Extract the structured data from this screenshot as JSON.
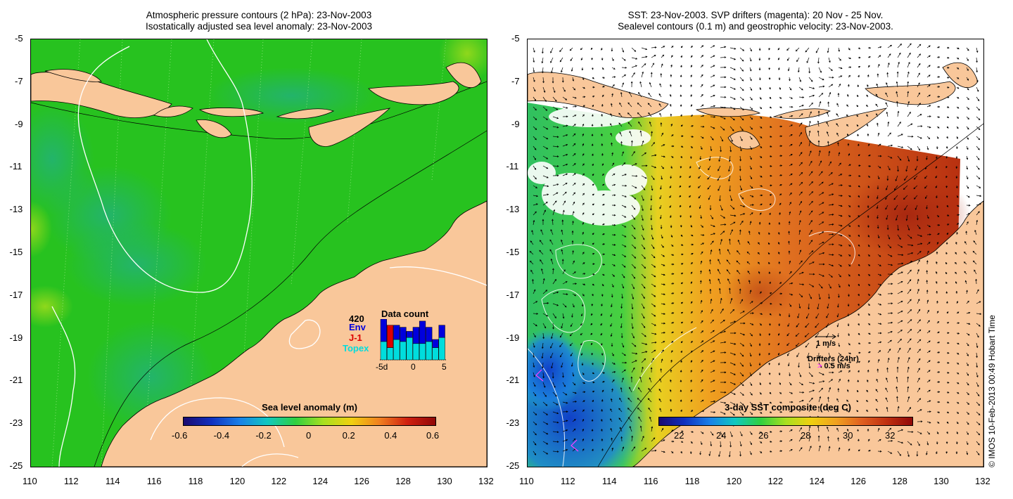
{
  "left_panel": {
    "title_line1": "Atmospheric pressure contours (2 hPa): 23-Nov-2003",
    "title_line2": "Isostatically adjusted sea level anomaly: 23-Nov-2003",
    "colorbar_label": "Sea level anomaly (m)",
    "colorbar_ticks": [
      "-0.6",
      "-0.4",
      "-0.2",
      "0",
      "0.2",
      "0.4",
      "0.6"
    ],
    "inset": {
      "title": "Data count",
      "max_label": "420",
      "legend": [
        {
          "label": "Env",
          "color": "#0000dd"
        },
        {
          "label": "J-1",
          "color": "#dd0000"
        },
        {
          "label": "Topex",
          "color": "#00dddd"
        }
      ],
      "x_ticks": [
        "-5d",
        "0",
        "5"
      ],
      "bars": [
        {
          "topex": 0.45,
          "env": 0.55,
          "j1": 0.0
        },
        {
          "topex": 0.3,
          "env": 0.0,
          "j1": 0.55
        },
        {
          "topex": 0.5,
          "env": 0.35,
          "j1": 0.0
        },
        {
          "topex": 0.45,
          "env": 0.35,
          "j1": 0.0
        },
        {
          "topex": 0.55,
          "env": 0.15,
          "j1": 0.0
        },
        {
          "topex": 0.4,
          "env": 0.4,
          "j1": 0.0
        },
        {
          "topex": 0.4,
          "env": 0.55,
          "j1": 0.0
        },
        {
          "topex": 0.45,
          "env": 0.35,
          "j1": 0.0
        },
        {
          "topex": 0.3,
          "env": 0.2,
          "j1": 0.0
        },
        {
          "topex": 0.55,
          "env": 0.3,
          "j1": 0.0
        }
      ]
    }
  },
  "right_panel": {
    "title_line1": "SST: 23-Nov-2003. SVP drifters (magenta): 20 Nov - 25 Nov.",
    "title_line2": "Sealevel contours (0.1 m) and geostrophic velocity: 23-Nov-2003.",
    "colorbar_label": "3-day SST composite (deg C)",
    "colorbar_ticks": [
      "22",
      "24",
      "26",
      "28",
      "30",
      "32"
    ],
    "velocity_scale_label": "1 m/s",
    "drifters_label": "Drifters (24hr)",
    "drifters_speed_label": "0.5 m/s",
    "drifter_symbol": ">"
  },
  "axes": {
    "lon_ticks": [
      "110",
      "112",
      "114",
      "116",
      "118",
      "120",
      "122",
      "124",
      "126",
      "128",
      "130",
      "132"
    ],
    "lat_ticks": [
      "-5",
      "-7",
      "-9",
      "-11",
      "-13",
      "-15",
      "-17",
      "-19",
      "-21",
      "-23",
      "-25"
    ]
  },
  "credit": "© IMOS 10-Feb-2013 00:49 Hobart Time",
  "colors": {
    "land": "#f9c79a",
    "ocean_anomaly": "#22c71f",
    "ocean_anomaly_low": "#1fb85a",
    "coastline": "#000000"
  }
}
